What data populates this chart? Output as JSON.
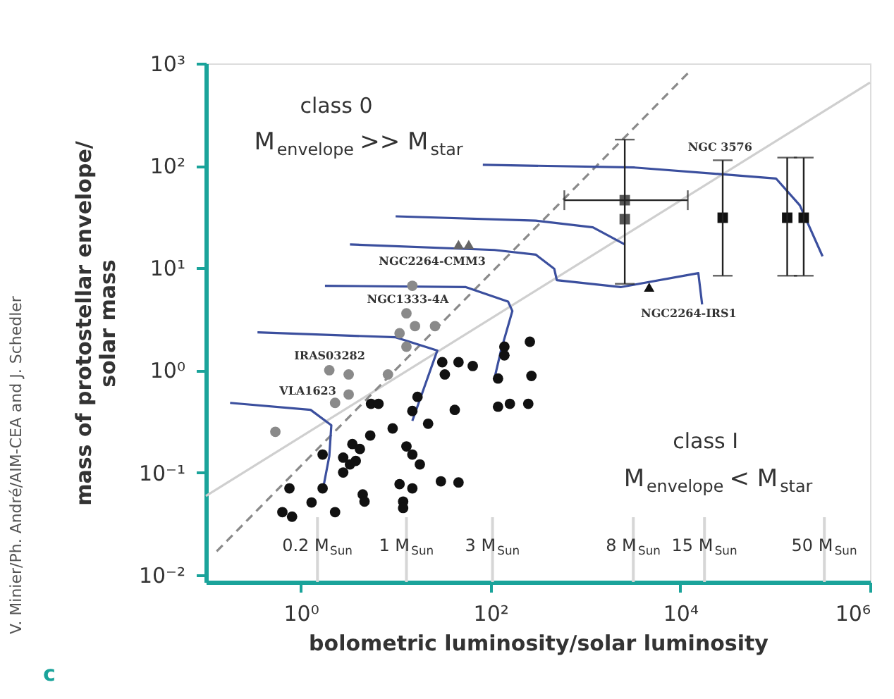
{
  "chart_data": {
    "type": "scatter",
    "xlabel": "bolometric luminosity/solar luminosity",
    "ylabel": "mass of protostellar envelope/\nsolar mass",
    "log": "xy",
    "grid": false,
    "xlim": [
      0.1,
      1000000
    ],
    "ylim": [
      0.0085,
      1000
    ],
    "xticks": [
      {
        "value": 1,
        "label": "10⁰"
      },
      {
        "value": 100,
        "label": "10²"
      },
      {
        "value": 10000,
        "label": "10⁴"
      },
      {
        "value": 1000000,
        "label": "10⁶"
      }
    ],
    "yticks": [
      {
        "value": 0.01,
        "label": "10⁻²"
      },
      {
        "value": 0.1,
        "label": "10⁻¹"
      },
      {
        "value": 1,
        "label": "10⁰"
      },
      {
        "value": 10,
        "label": "10¹"
      },
      {
        "value": 100,
        "label": "10²"
      },
      {
        "value": 1000,
        "label": "10³"
      }
    ],
    "series": [
      {
        "type": "line",
        "color": "#cfcfcf",
        "line_style": "solid",
        "marker": "none",
        "x": [
          0.1,
          1000000
        ],
        "values": [
          0.059,
          650
        ]
      },
      {
        "type": "line",
        "color": "#8a8a8a",
        "line_style": "dashed",
        "marker": "none",
        "x": [
          0.13,
          12000
        ],
        "values": [
          0.017,
          800
        ]
      },
      {
        "type": "line",
        "color": "#3b4f9e",
        "line_style": "solid",
        "marker": "none",
        "x": [
          83,
          3300,
          102000,
          182000,
          316000
        ],
        "values": [
          102,
          96,
          75,
          41,
          13
        ]
      },
      {
        "type": "line",
        "color": "#3b4f9e",
        "line_style": "solid",
        "marker": "none",
        "x": [
          10,
          300,
          1200,
          2600
        ],
        "values": [
          32,
          29,
          25,
          17
        ]
      },
      {
        "type": "line",
        "color": "#3b4f9e",
        "line_style": "solid",
        "marker": "none",
        "x": [
          3.3,
          110,
          300,
          470,
          500,
          2350,
          15500,
          17000
        ],
        "values": [
          17,
          15,
          13.5,
          9.8,
          7.6,
          6.5,
          8.9,
          4.4
        ]
      },
      {
        "type": "line",
        "color": "#3b4f9e",
        "line_style": "solid",
        "marker": "none",
        "x": [
          1.8,
          55,
          153,
          170,
          129,
          110
        ],
        "values": [
          6.7,
          6.5,
          4.7,
          3.8,
          1.56,
          0.83
        ]
      },
      {
        "type": "line",
        "color": "#3b4f9e",
        "line_style": "solid",
        "marker": "none",
        "x": [
          0.35,
          10,
          27.5,
          15
        ],
        "values": [
          2.35,
          2.1,
          1.56,
          0.32
        ]
      },
      {
        "type": "line",
        "color": "#3b4f9e",
        "line_style": "solid",
        "marker": "none",
        "x": [
          0.18,
          1.27,
          2.1,
          2.0,
          1.7
        ],
        "values": [
          0.48,
          0.41,
          0.29,
          0.145,
          0.066
        ]
      },
      {
        "color": "#111111",
        "marker": "circle",
        "x": [
          260,
          140,
          140,
          270,
          31,
          46,
          65,
          33,
          120,
          17,
          5.5,
          6.6,
          42,
          120,
          160,
          250,
          15,
          9.3,
          22,
          5.4,
          3.5,
          4.2,
          13,
          1.7,
          2.8,
          3.8,
          15,
          18,
          3.3,
          2.8,
          0.76,
          1.7,
          11,
          15,
          30,
          46,
          4.5,
          4.7,
          12,
          12,
          1.3,
          0.64,
          0.81,
          2.3
        ],
        "values": [
          1.9,
          1.7,
          1.4,
          0.88,
          1.2,
          1.2,
          1.1,
          0.91,
          0.83,
          0.55,
          0.47,
          0.47,
          0.41,
          0.44,
          0.47,
          0.47,
          0.4,
          0.27,
          0.3,
          0.23,
          0.19,
          0.17,
          0.18,
          0.15,
          0.14,
          0.13,
          0.15,
          0.12,
          0.12,
          0.1,
          0.07,
          0.07,
          0.077,
          0.07,
          0.082,
          0.08,
          0.061,
          0.052,
          0.052,
          0.045,
          0.051,
          0.041,
          0.037,
          0.041
        ]
      },
      {
        "color": "#8a8a8a",
        "marker": "circle",
        "x": [
          13,
          16,
          26,
          11,
          13,
          8.3,
          2,
          3.2,
          3.2,
          2.3,
          0.54,
          15
        ],
        "values": [
          3.6,
          2.7,
          2.7,
          2.3,
          1.7,
          0.91,
          1,
          0.91,
          0.58,
          0.48,
          0.25,
          6.7
        ]
      },
      {
        "color": "#666666",
        "marker": "triangle",
        "x": [
          46,
          59
        ],
        "values": [
          17,
          17
        ]
      },
      {
        "color": "#111111",
        "marker": "triangle",
        "x": [
          4700
        ],
        "values": [
          6.5
        ]
      },
      {
        "color": "#555555",
        "marker": "square",
        "x": [
          2600,
          2600
        ],
        "values": [
          46,
          30
        ],
        "errors": [
          [
            7,
            180
          ],
          null
        ],
        "xerrors": [
          [
            600,
            12000
          ],
          null
        ]
      },
      {
        "color": "#111111",
        "marker": "square",
        "x": [
          28000,
          134000,
          200000
        ],
        "values": [
          31,
          31,
          31
        ],
        "errors": [
          [
            8.4,
            113
          ],
          [
            8.4,
            120
          ],
          [
            8.4,
            120
          ]
        ]
      }
    ],
    "ref_lines": [
      {
        "axis": "x",
        "value": 1.5,
        "label": "0.2 M$_{Sun}$",
        "color": "#d6d6d6"
      },
      {
        "axis": "x",
        "value": 13,
        "label": "1 M$_{Sun}$",
        "color": "#d6d6d6"
      },
      {
        "axis": "x",
        "value": 105,
        "label": "3 M$_{Sun}$",
        "color": "#d6d6d6"
      },
      {
        "axis": "x",
        "value": 3200,
        "label": "8 M$_{Sun}$",
        "color": "#d6d6d6"
      },
      {
        "axis": "x",
        "value": 18000,
        "label": "15 M$_{Sun}$",
        "color": "#d6d6d6"
      },
      {
        "axis": "x",
        "value": 330000,
        "label": "50 M$_{Sun}$",
        "color": "#d6d6d6"
      }
    ],
    "annotations": [
      "class 0",
      "M$_{envelope}$ >> M$_{star}$",
      "class I",
      "M$_{envelope}$ < M$_{star}$",
      "V. Minier/Ph. André/AIM-CEA and J. Schedler",
      "c",
      "NGC 3576",
      "NGC2264-CMM3",
      "NGC1333-4A",
      "IRAS03282",
      "VLA1623",
      "NGC2264-IRS1"
    ]
  }
}
